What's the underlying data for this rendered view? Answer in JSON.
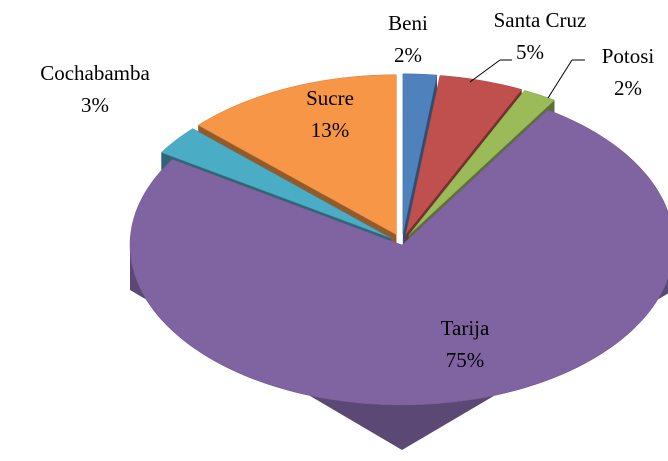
{
  "chart_data": {
    "type": "pie",
    "categories": [
      "Beni",
      "Santa Cruz",
      "Potosi",
      "Tarija",
      "Cochabamba",
      "Sucre"
    ],
    "values": [
      2,
      5,
      2,
      75,
      3,
      13
    ],
    "value_labels": [
      "2%",
      "5%",
      "2%",
      "75%",
      "3%",
      "13%"
    ],
    "colors": [
      "#4f81bd",
      "#c0504d",
      "#9bbb59",
      "#8064a2",
      "#4bacc6",
      "#f79646"
    ]
  }
}
